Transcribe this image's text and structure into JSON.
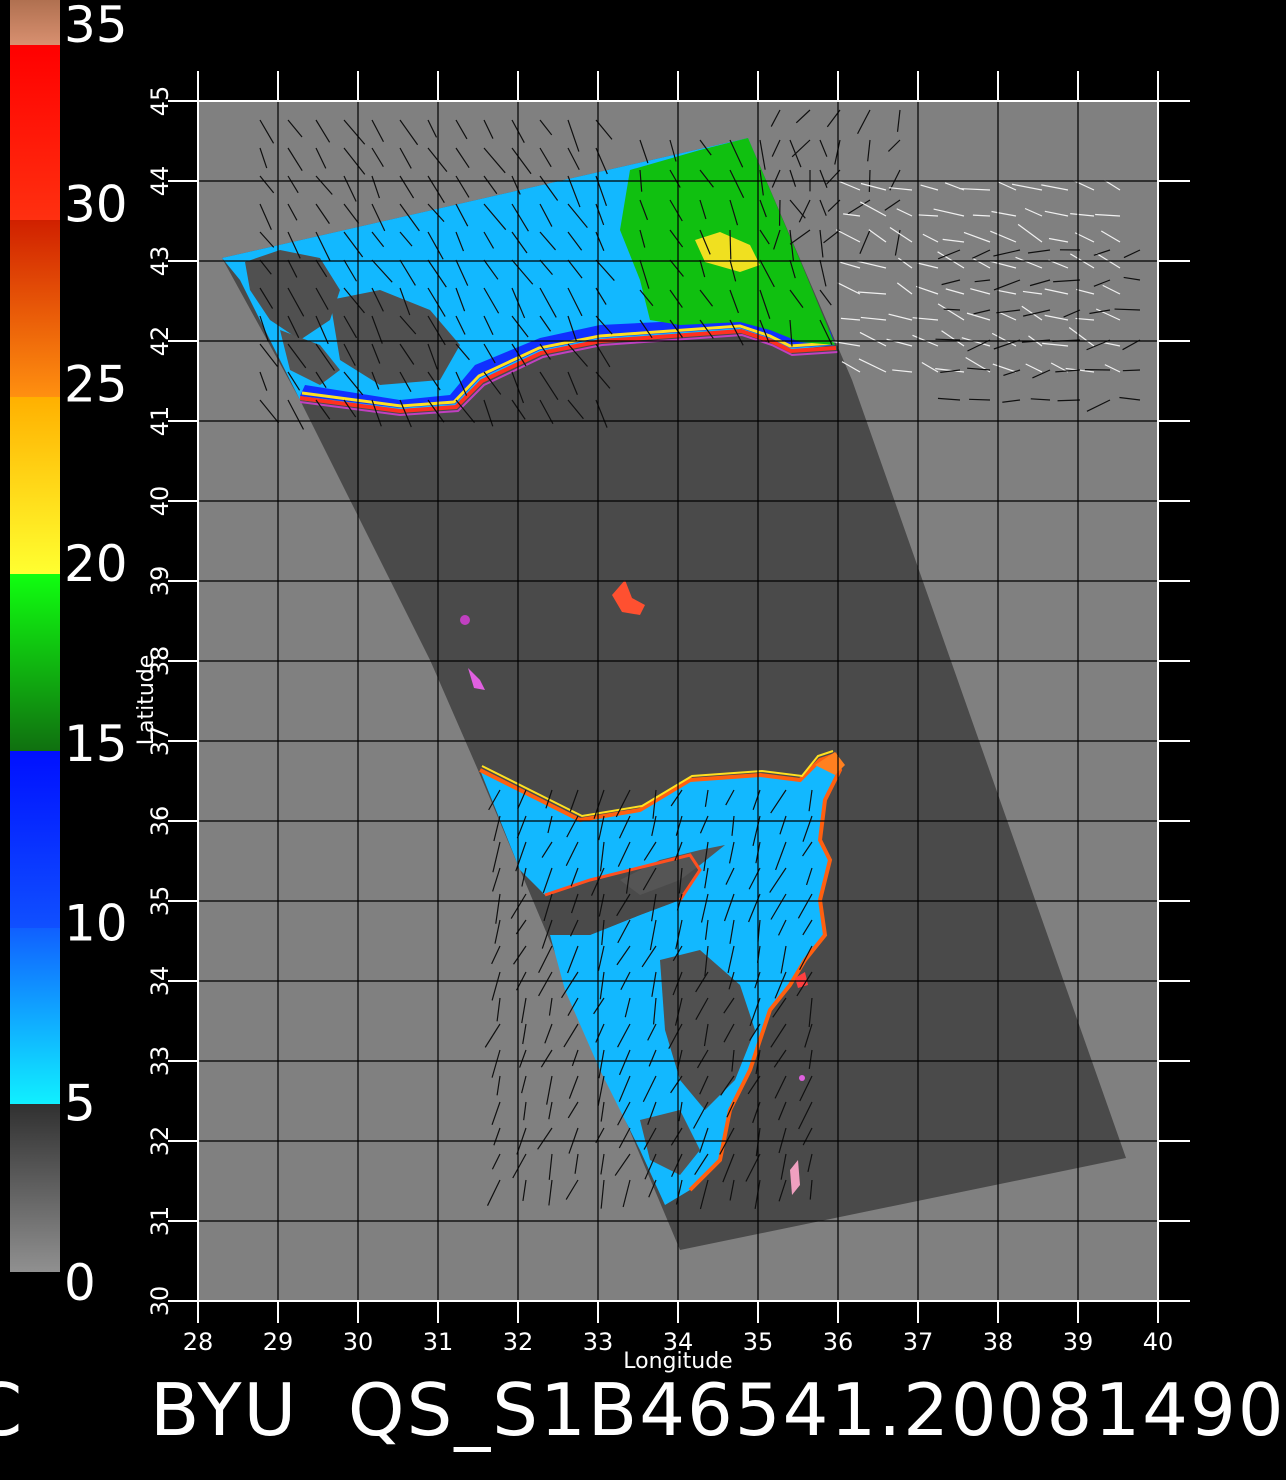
{
  "colorbar": {
    "labels": [
      "35",
      "30",
      "25",
      "20",
      "15",
      "10",
      "5",
      "0"
    ],
    "colors": {
      "top": "#c8865a",
      "red": "#ff1010",
      "orange": "#ff7a10",
      "yellow": "#ffe020",
      "green": "#10e010",
      "blue": "#1030ff",
      "cyan": "#10e8ff",
      "gray": "#808080"
    }
  },
  "axes": {
    "xlabel": "Longitude",
    "ylabel": "Latitude",
    "x_ticks": [
      "28",
      "29",
      "30",
      "31",
      "32",
      "33",
      "34",
      "35",
      "36",
      "37",
      "38",
      "39",
      "40"
    ],
    "y_ticks": [
      "30",
      "31",
      "32",
      "33",
      "34",
      "35",
      "36",
      "37",
      "38",
      "39",
      "40",
      "41",
      "42",
      "43",
      "44",
      "45"
    ],
    "x_range": [
      28,
      40
    ],
    "y_range": [
      30,
      45
    ]
  },
  "footer": {
    "edge_glyph": "C",
    "title": "BYU  QS_S1B46541.20081490"
  },
  "colors": {
    "background": "#000000",
    "land": "#808080",
    "swath": "#4a4a4a",
    "grid": "#000000"
  }
}
